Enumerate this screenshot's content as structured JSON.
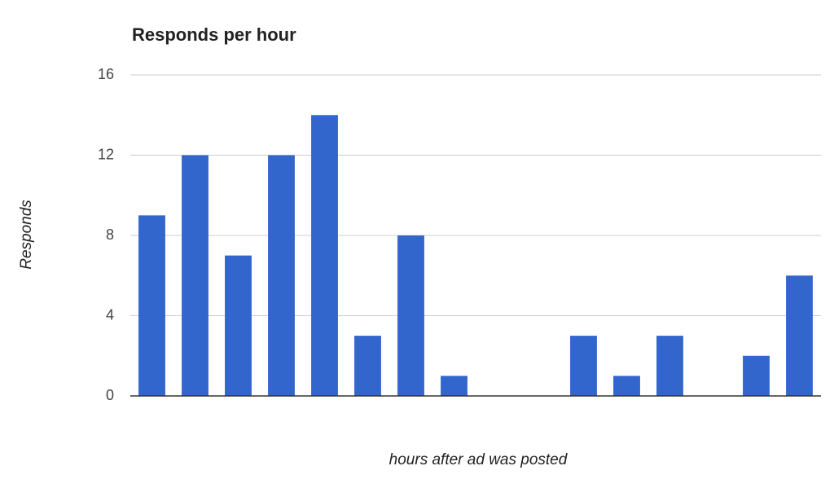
{
  "chart_data": {
    "type": "bar",
    "title": "Responds per hour",
    "x_label": "hours after ad was posted",
    "y_label": "Responds",
    "categories": [
      null,
      null,
      null,
      null,
      null,
      null,
      null,
      null,
      null,
      null,
      null,
      null,
      null,
      null,
      null,
      null
    ],
    "values": [
      9,
      12,
      7,
      12,
      14,
      3,
      8,
      1,
      0,
      0,
      3,
      1,
      3,
      0,
      2,
      6
    ],
    "color": "#3366cc",
    "ylim": [
      0,
      16
    ],
    "yticks": [
      0,
      4,
      8,
      12,
      16
    ],
    "grid": true
  }
}
